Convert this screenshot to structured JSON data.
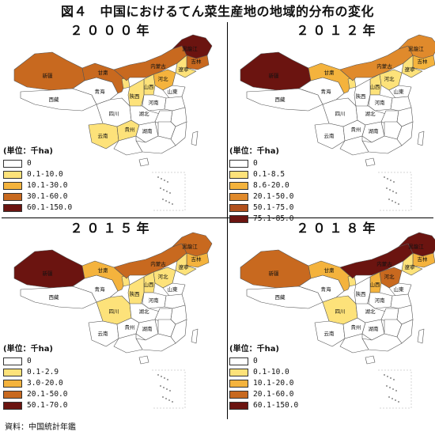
{
  "title": "図４　中国におけるてん菜生産地の地域的分布の変化",
  "source": "資料：中国統計年鑑",
  "legend_title": "(単位：千ha)",
  "province_labels": {
    "xinjiang": "新疆",
    "neimenggu": "内蒙古",
    "heilongjiang": "黒龍江",
    "jilin": "吉林",
    "liaoning": "遼寧",
    "hebei": "河北",
    "shanxi": "山西",
    "shandong": "山東",
    "henan": "河南",
    "qinghai": "青海",
    "tibet": "西藏",
    "sichuan": "四川",
    "yunnan": "云南",
    "guizhou": "貴州",
    "hubei": "湖北",
    "hunan": "湖南",
    "gansu": "甘粛",
    "shaanxi": "陝西"
  },
  "panels": [
    {
      "year": "２０００年",
      "legend": [
        {
          "label": "0",
          "color": "#ffffff"
        },
        {
          "label": "0.1-10.0",
          "color": "#fde27a"
        },
        {
          "label": "10.1-30.0",
          "color": "#f4b33d"
        },
        {
          "label": "30.1-60.0",
          "color": "#c8691f"
        },
        {
          "label": "60.1-150.0",
          "color": "#6b1410"
        }
      ],
      "provinces": {
        "xinjiang": "#c8691f",
        "tibet": "#ffffff",
        "qinghai": "#ffffff",
        "gansu": "#c8691f",
        "neimenggu": "#c8691f",
        "heilongjiang": "#6b1410",
        "jilin": "#c8691f",
        "liaoning": "#fde27a",
        "hebei": "#f4b33d",
        "shanxi": "#fde27a",
        "shaanxi": "#fde27a",
        "shandong": "#ffffff",
        "henan": "#ffffff",
        "sichuan": "#ffffff",
        "yunnan": "#fde27a",
        "guizhou": "#fde27a",
        "hubei": "#ffffff",
        "hunan": "#ffffff",
        "ningxia": "#fde27a"
      }
    },
    {
      "year": "２０１２年",
      "legend": [
        {
          "label": "0",
          "color": "#ffffff"
        },
        {
          "label": "0.1-8.5",
          "color": "#fde27a"
        },
        {
          "label": "8.6-20.0",
          "color": "#f4b33d"
        },
        {
          "label": "20.1-50.0",
          "color": "#e08a2c"
        },
        {
          "label": "50.1-75.0",
          "color": "#b1501c"
        },
        {
          "label": "75.1-85.0",
          "color": "#6b1410"
        }
      ],
      "provinces": {
        "xinjiang": "#6b1410",
        "tibet": "#ffffff",
        "qinghai": "#ffffff",
        "gansu": "#f4b33d",
        "neimenggu": "#e08a2c",
        "heilongjiang": "#e08a2c",
        "jilin": "#f4b33d",
        "liaoning": "#fde27a",
        "hebei": "#fde27a",
        "shanxi": "#fde27a",
        "shaanxi": "#ffffff",
        "shandong": "#ffffff",
        "henan": "#ffffff",
        "sichuan": "#ffffff",
        "yunnan": "#ffffff",
        "guizhou": "#ffffff",
        "hubei": "#ffffff",
        "hunan": "#ffffff",
        "ningxia": "#fde27a"
      }
    },
    {
      "year": "２０１５年",
      "legend": [
        {
          "label": "0",
          "color": "#ffffff"
        },
        {
          "label": "0.1-2.9",
          "color": "#fde27a"
        },
        {
          "label": "3.0-20.0",
          "color": "#f4b33d"
        },
        {
          "label": "20.1-50.0",
          "color": "#c8691f"
        },
        {
          "label": "50.1-70.0",
          "color": "#6b1410"
        }
      ],
      "provinces": {
        "xinjiang": "#6b1410",
        "tibet": "#ffffff",
        "qinghai": "#ffffff",
        "gansu": "#f4b33d",
        "neimenggu": "#c8691f",
        "heilongjiang": "#c8691f",
        "jilin": "#f4b33d",
        "liaoning": "#fde27a",
        "hebei": "#fde27a",
        "shanxi": "#fde27a",
        "shaanxi": "#fde27a",
        "shandong": "#ffffff",
        "henan": "#ffffff",
        "sichuan": "#fde27a",
        "yunnan": "#ffffff",
        "guizhou": "#ffffff",
        "hubei": "#ffffff",
        "hunan": "#ffffff",
        "ningxia": "#fde27a"
      }
    },
    {
      "year": "２０１８年",
      "legend": [
        {
          "label": "0",
          "color": "#ffffff"
        },
        {
          "label": "0.1-10.0",
          "color": "#fde27a"
        },
        {
          "label": "10.1-20.0",
          "color": "#f4b33d"
        },
        {
          "label": "20.1-60.0",
          "color": "#c8691f"
        },
        {
          "label": "60.1-150.0",
          "color": "#6b1410"
        }
      ],
      "provinces": {
        "xinjiang": "#c8691f",
        "tibet": "#ffffff",
        "qinghai": "#ffffff",
        "gansu": "#f4b33d",
        "neimenggu": "#6b1410",
        "heilongjiang": "#6b1410",
        "jilin": "#f4b33d",
        "liaoning": "#fde27a",
        "hebei": "#c8691f",
        "shanxi": "#f4b33d",
        "shaanxi": "#ffffff",
        "shandong": "#ffffff",
        "henan": "#ffffff",
        "sichuan": "#fde27a",
        "yunnan": "#ffffff",
        "guizhou": "#ffffff",
        "hubei": "#ffffff",
        "hunan": "#ffffff",
        "ningxia": "#fde27a"
      }
    }
  ]
}
